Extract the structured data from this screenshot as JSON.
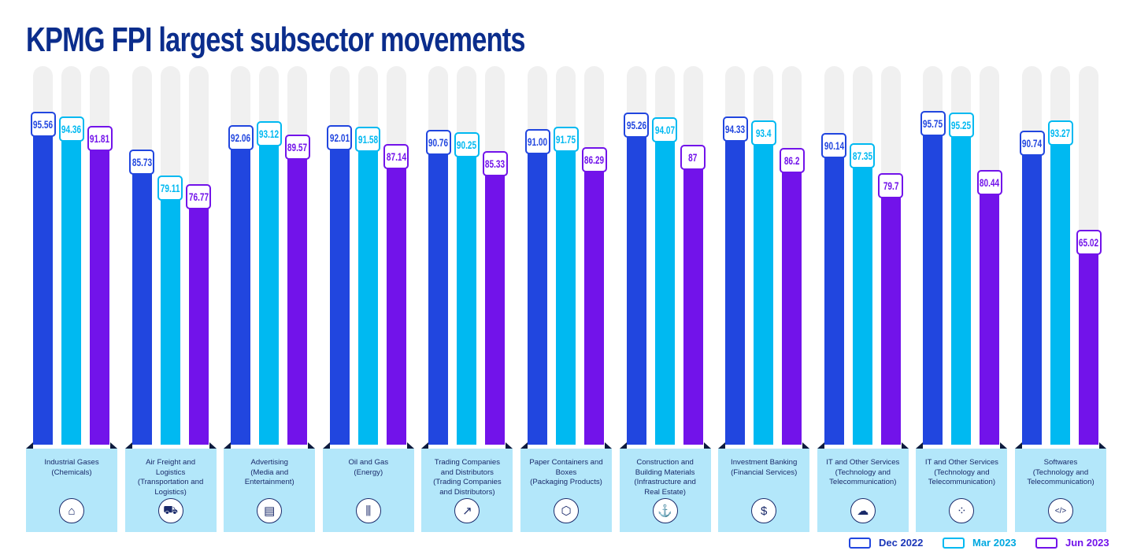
{
  "chart_data": {
    "type": "bar",
    "title": "KPMG FPI largest subsector movements",
    "xlabel": "",
    "ylabel": "",
    "categories": [
      "Industrial Gases (Chemicals)",
      "Air Freight and Logistics (Transportation and Logistics)",
      "Advertising (Media and Entertainment)",
      "Oil and Gas (Energy)",
      "Trading Companies and Distributors (Trading Companies and Distributors)",
      "Paper Containers and Boxes (Packaging Products)",
      "Construction and Building Materials (Infrastructure and Real Estate)",
      "Investment Banking (Financial Services)",
      "IT and Other Services (Technology and Telecommunication)",
      "IT and Other Services (Technology and Telecommunication)",
      "Softwares (Technology and Telecommunication)"
    ],
    "category_lines": [
      [
        "Industrial Gases",
        "(Chemicals)"
      ],
      [
        "Air Freight and",
        "Logistics",
        "(Transportation and",
        "Logistics)"
      ],
      [
        "Advertising",
        "(Media and",
        "Entertainment)"
      ],
      [
        "Oil and Gas",
        "(Energy)"
      ],
      [
        "Trading Companies",
        "and Distributors",
        "(Trading Companies",
        "and Distributors)"
      ],
      [
        "Paper Containers and",
        "Boxes",
        "(Packaging Products)"
      ],
      [
        "Construction and",
        "Building Materials",
        "(Infrastructure and",
        "Real Estate)"
      ],
      [
        "Investment Banking",
        "(Financial Services)"
      ],
      [
        "IT and Other Services",
        "(Technology and",
        "Telecommunication)"
      ],
      [
        "IT and Other Services",
        "(Technology and",
        "Telecommunication)"
      ],
      [
        "Softwares",
        "(Technology and",
        "Telecommunication)"
      ]
    ],
    "category_icons": [
      "factory-icon",
      "truck-icon",
      "clapperboard-icon",
      "oil-refinery-icon",
      "growth-chart-icon",
      "box-icon",
      "construction-crane-icon",
      "money-bank-icon",
      "cloud-gear-icon",
      "network-nodes-icon",
      "code-window-icon"
    ],
    "series": [
      {
        "name": "Dec 2022",
        "color": "#2146df",
        "values": [
          95.56,
          85.73,
          92.06,
          92.01,
          90.76,
          91.0,
          95.26,
          94.33,
          90.14,
          95.75,
          90.74
        ],
        "labels": [
          "95.56",
          "85.73",
          "92.06",
          "92.01",
          "90.76",
          "91.00",
          "95.26",
          "94.33",
          "90.14",
          "95.75",
          "90.74"
        ]
      },
      {
        "name": "Mar 2023",
        "color": "#00b9f1",
        "values": [
          94.36,
          79.11,
          93.12,
          91.58,
          90.25,
          91.75,
          94.07,
          93.4,
          87.35,
          95.25,
          93.27
        ],
        "labels": [
          "94.36",
          "79.11",
          "93.12",
          "91.58",
          "90.25",
          "91.75",
          "94.07",
          "93.4",
          "87.35",
          "95.25",
          "93.27"
        ]
      },
      {
        "name": "Jun 2023",
        "color": "#7213ea",
        "values": [
          91.81,
          76.77,
          89.57,
          87.14,
          85.33,
          86.29,
          87,
          86.2,
          79.7,
          80.44,
          65.02
        ],
        "labels": [
          "91.81",
          "76.77",
          "89.57",
          "87.14",
          "85.33",
          "86.29",
          "87",
          "86.2",
          "79.7",
          "80.44",
          "65.02"
        ]
      }
    ],
    "legend_position": "bottom-right",
    "grid": false
  }
}
